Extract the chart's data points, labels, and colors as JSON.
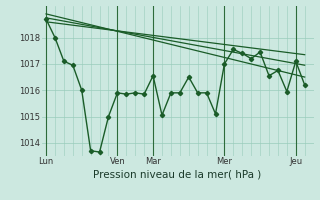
{
  "xlabel": "Pression niveau de la mer( hPa )",
  "bg_color": "#cce8e0",
  "grid_color": "#99ccbb",
  "line_color": "#1a5c28",
  "vline_color": "#2d6b3a",
  "ylabel_color": "#1a3a2a",
  "tick_color": "#333333",
  "ylim": [
    1013.5,
    1019.2
  ],
  "xlim": [
    -3,
    180
  ],
  "xtick_labels": [
    "Lun",
    "Ven",
    "Mar",
    "Mer",
    "Jeu"
  ],
  "xtick_positions": [
    0,
    48,
    72,
    120,
    168
  ],
  "ytick_values": [
    1014,
    1015,
    1016,
    1017,
    1018
  ],
  "line1_x": [
    0,
    6,
    12,
    18,
    24,
    30,
    36,
    42,
    48,
    54,
    60,
    66,
    72,
    78,
    84,
    90,
    96,
    102,
    108,
    114,
    120,
    126,
    132,
    138,
    144,
    150,
    156,
    162,
    168,
    174
  ],
  "line1_y": [
    1018.7,
    1018.0,
    1017.1,
    1016.95,
    1016.0,
    1013.7,
    1013.65,
    1015.0,
    1015.9,
    1015.85,
    1015.9,
    1015.85,
    1016.55,
    1015.05,
    1015.9,
    1015.9,
    1016.5,
    1015.9,
    1015.9,
    1015.1,
    1017.0,
    1017.55,
    1017.4,
    1017.2,
    1017.45,
    1016.55,
    1016.75,
    1015.95,
    1017.1,
    1016.2
  ],
  "line2_x": [
    0,
    174
  ],
  "line2_y": [
    1018.9,
    1016.5
  ],
  "line3_x": [
    0,
    174
  ],
  "line3_y": [
    1018.75,
    1016.95
  ],
  "line4_x": [
    0,
    174
  ],
  "line4_y": [
    1018.6,
    1017.35
  ]
}
